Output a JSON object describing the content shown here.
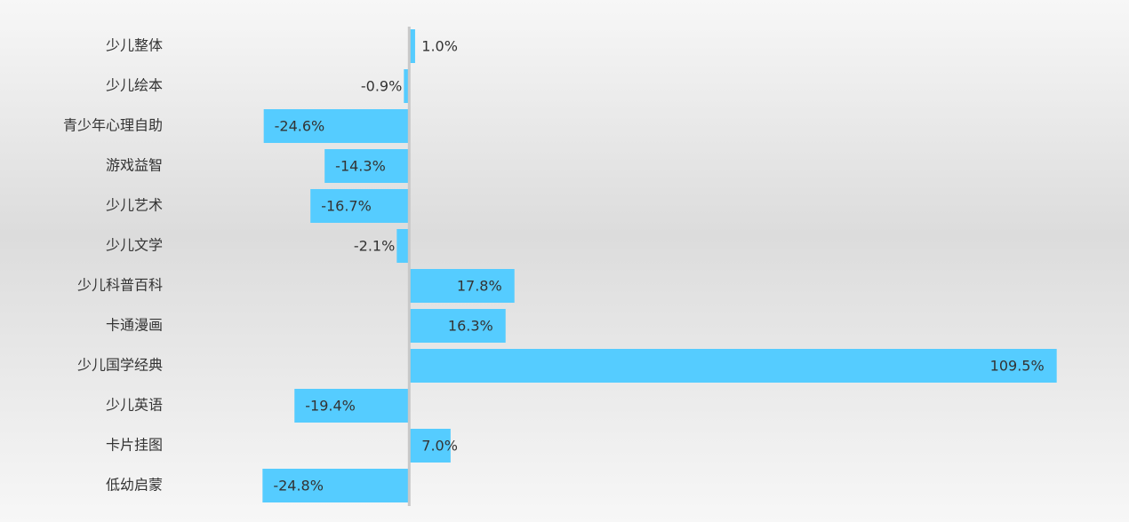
{
  "chart_data": {
    "type": "bar",
    "orientation": "horizontal",
    "categories": [
      "少儿整体",
      "少儿绘本",
      "青少年心理自助",
      "游戏益智",
      "少儿艺术",
      "少儿文学",
      "少儿科普百科",
      "卡通漫画",
      "少儿国学经典",
      "少儿英语",
      "卡片挂图",
      "低幼启蒙"
    ],
    "values": [
      1.0,
      -0.9,
      -24.6,
      -14.3,
      -16.7,
      -2.1,
      17.8,
      16.3,
      109.5,
      -19.4,
      7.0,
      -24.8
    ],
    "value_labels": [
      "1.0%",
      "-0.9%",
      "-24.6%",
      "-14.3%",
      "-16.7%",
      "-2.1%",
      "17.8%",
      "16.3%",
      "109.5%",
      "-19.4%",
      "7.0%",
      "-24.8%"
    ],
    "color": "#55ccff",
    "xlim": [
      -25,
      110
    ]
  }
}
